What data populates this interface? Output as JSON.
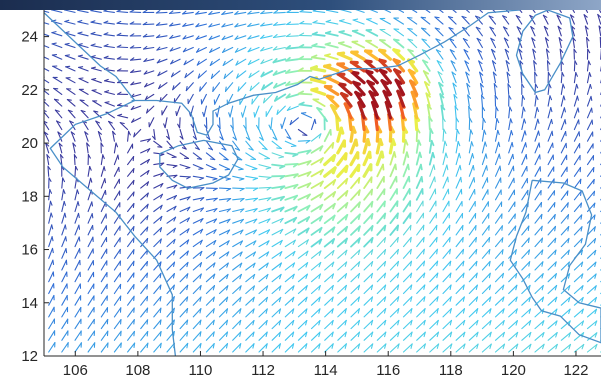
{
  "chart_data": {
    "type": "quiver",
    "title": "",
    "xlabel": "",
    "ylabel": "",
    "xlim": [
      105,
      122.8
    ],
    "ylim": [
      12,
      25
    ],
    "x_ticks": [
      "106",
      "108",
      "110",
      "112",
      "114",
      "116",
      "118",
      "120",
      "122"
    ],
    "y_ticks": [
      "12",
      "14",
      "16",
      "18",
      "20",
      "22",
      "24"
    ],
    "grid": false,
    "legend": "none",
    "colormap": "jet",
    "cyclone_center": [
      113.5,
      20.6
    ],
    "grid_spacing_deg": [
      0.42,
      0.44
    ],
    "max_wind_region": [
      116.0,
      22.0
    ],
    "coastline_color": "#4a90c8",
    "colors": [
      "#3a3a9e",
      "#2f6fd8",
      "#41c8f0",
      "#8ef0b8",
      "#eaf04a",
      "#ffb62e",
      "#f05a24",
      "#a2151e"
    ],
    "coastlines": [
      {
        "name": "south-china-coast",
        "points": [
          [
            105,
            24.9
          ],
          [
            106.8,
            22.9
          ],
          [
            107.3,
            22.5
          ],
          [
            107.9,
            21.6
          ],
          [
            107.0,
            21.1
          ],
          [
            106.0,
            20.7
          ],
          [
            105.2,
            19.8
          ],
          [
            105.6,
            19.1
          ],
          [
            106.5,
            18.2
          ],
          [
            107.3,
            17.4
          ],
          [
            107.9,
            16.5
          ],
          [
            108.6,
            15.6
          ],
          [
            109.1,
            14.3
          ],
          [
            109.1,
            13.0
          ],
          [
            109.2,
            12.0
          ]
        ]
      },
      {
        "name": "guangdong-coast",
        "points": [
          [
            107.8,
            21.6
          ],
          [
            108.6,
            21.6
          ],
          [
            109.4,
            21.5
          ],
          [
            109.7,
            21.1
          ],
          [
            109.9,
            20.4
          ],
          [
            110.2,
            20.3
          ],
          [
            110.4,
            20.7
          ],
          [
            110.4,
            21.2
          ],
          [
            110.9,
            21.5
          ],
          [
            111.7,
            21.8
          ],
          [
            112.4,
            21.9
          ],
          [
            113.1,
            22.2
          ],
          [
            113.5,
            22.5
          ],
          [
            113.8,
            22.4
          ],
          [
            114.3,
            22.6
          ],
          [
            114.8,
            22.8
          ],
          [
            115.6,
            22.8
          ],
          [
            116.3,
            22.9
          ],
          [
            117.0,
            23.3
          ],
          [
            117.8,
            23.8
          ],
          [
            118.6,
            24.4
          ],
          [
            119.2,
            24.9
          ],
          [
            120.2,
            25.0
          ]
        ]
      },
      {
        "name": "hainan-island",
        "points": [
          [
            110.1,
            20.1
          ],
          [
            111.0,
            19.9
          ],
          [
            111.2,
            19.4
          ],
          [
            110.9,
            18.8
          ],
          [
            110.4,
            18.5
          ],
          [
            109.6,
            18.3
          ],
          [
            109.1,
            18.6
          ],
          [
            108.7,
            19.1
          ],
          [
            108.7,
            19.6
          ],
          [
            109.3,
            19.9
          ],
          [
            110.1,
            20.1
          ]
        ]
      },
      {
        "name": "taiwan-island",
        "points": [
          [
            121.1,
            25.0
          ],
          [
            121.8,
            24.7
          ],
          [
            121.9,
            24.0
          ],
          [
            121.5,
            23.0
          ],
          [
            121.0,
            22.0
          ],
          [
            120.7,
            21.9
          ],
          [
            120.3,
            22.6
          ],
          [
            120.1,
            23.3
          ],
          [
            120.3,
            24.2
          ],
          [
            120.7,
            24.8
          ],
          [
            121.1,
            25.0
          ]
        ]
      },
      {
        "name": "luzon-island",
        "points": [
          [
            120.6,
            18.6
          ],
          [
            121.6,
            18.5
          ],
          [
            122.2,
            18.2
          ],
          [
            122.5,
            17.3
          ],
          [
            122.3,
            16.2
          ],
          [
            121.8,
            15.4
          ],
          [
            121.6,
            14.5
          ],
          [
            122.1,
            14.0
          ],
          [
            122.8,
            13.8
          ],
          [
            122.8,
            12.5
          ],
          [
            122.1,
            12.8
          ],
          [
            121.5,
            13.5
          ],
          [
            120.9,
            13.7
          ],
          [
            120.6,
            14.2
          ],
          [
            120.3,
            14.9
          ],
          [
            119.9,
            15.6
          ],
          [
            120.1,
            16.5
          ],
          [
            120.4,
            17.4
          ],
          [
            120.6,
            18.6
          ]
        ]
      }
    ]
  }
}
